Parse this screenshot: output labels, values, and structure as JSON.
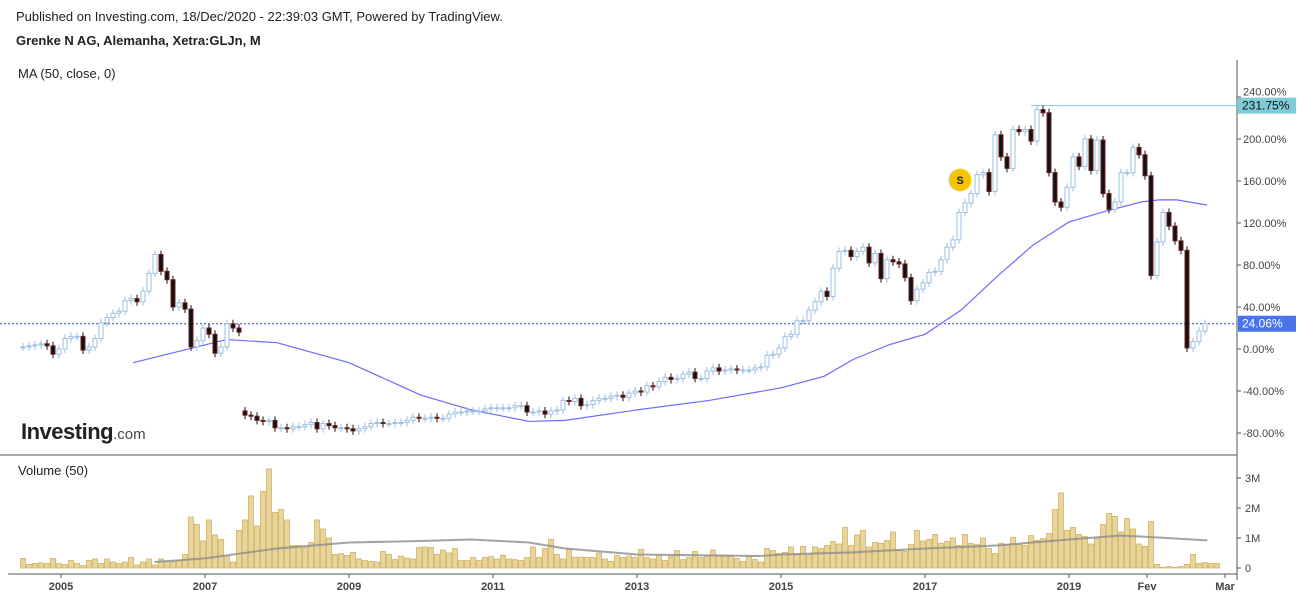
{
  "header": {
    "published": "Published on Investing.com, 18/Dec/2020 - 22:39:03 GMT, Powered by TradingView.",
    "symbol": "Grenke N AG, Alemanha, Xetra:GLJn, M"
  },
  "logo": {
    "main": "Investing",
    "suffix": ".com"
  },
  "marker": {
    "label": "S"
  },
  "colors": {
    "up": "#9bbfe0",
    "down_body": "#111111",
    "down_border": "#6b1d1d",
    "ma": "#6b6bff",
    "volume_fill": "#e8d59e",
    "volume_border": "#d2b45c",
    "vol_ma": "#8c8c8c",
    "last_price_bg": "#4a74e8",
    "high_bg": "#7fccd9"
  },
  "chart_data": [
    {
      "type": "candlestick",
      "title": "MA (50, close, 0)",
      "unit": "%",
      "start_month": "2004-05",
      "frequency": "monthly",
      "ylim": [
        -95,
        255
      ],
      "yticks": [
        "240.00%",
        "200.00%",
        "160.00%",
        "120.00%",
        "80.00%",
        "40.00%",
        "0.00%",
        "-40.00%",
        "-80.00%"
      ],
      "ytick_values": [
        240,
        200,
        160,
        120,
        80,
        40,
        0,
        -40,
        -80
      ],
      "close": [
        2,
        3,
        4,
        5,
        3,
        -5,
        0,
        10,
        12,
        12,
        -1,
        2,
        10,
        25,
        30,
        34,
        36,
        46,
        48,
        45,
        55,
        72,
        90,
        74,
        66,
        40,
        44,
        38,
        2,
        8,
        20,
        14,
        -4,
        2,
        24,
        20,
        16,
        -63,
        -64,
        -68,
        -69,
        -68,
        -75,
        -75,
        -76,
        -74,
        -74,
        -72,
        -70,
        -76,
        -71,
        -73,
        -75,
        -75,
        -76,
        -78,
        -76,
        -74,
        -71,
        -70,
        -71,
        -71,
        -70,
        -70,
        -68,
        -65,
        -66,
        -66,
        -65,
        -66,
        -66,
        -62,
        -60,
        -60,
        -59,
        -59,
        -59,
        -57,
        -56,
        -56,
        -56,
        -56,
        -54,
        -54,
        -60,
        -60,
        -59,
        -62,
        -59,
        -58,
        -49,
        -50,
        -47,
        -54,
        -53,
        -49,
        -47,
        -47,
        -45,
        -44,
        -46,
        -42,
        -40,
        -41,
        -35,
        -36,
        -31,
        -27,
        -29,
        -28,
        -24,
        -22,
        -28,
        -28,
        -21,
        -18,
        -21,
        -20,
        -19,
        -20,
        -20,
        -20,
        -18,
        -17,
        -6,
        -5,
        1,
        12,
        14,
        27,
        27,
        37,
        45,
        55,
        50,
        77,
        93,
        94,
        88,
        93,
        97,
        82,
        91,
        67,
        85,
        83,
        81,
        68,
        46,
        57,
        63,
        73,
        74,
        85,
        97,
        104,
        130,
        139,
        148,
        166,
        168,
        150,
        204,
        183,
        172,
        209,
        207,
        209,
        198,
        228,
        225,
        168,
        140,
        135,
        154,
        183,
        174,
        200,
        170,
        199,
        148,
        133,
        140,
        168,
        168,
        192,
        185,
        165,
        70,
        102,
        130,
        117,
        103,
        94,
        1,
        7,
        17,
        24.06
      ],
      "ma_series": {
        "name": "MA (50, close, 0)",
        "points": [
          [
            2006.0,
            -13
          ],
          [
            2007.3,
            9
          ],
          [
            2008.0,
            6
          ],
          [
            2009.0,
            -13
          ],
          [
            2010.0,
            -44
          ],
          [
            2010.7,
            -58
          ],
          [
            2011.5,
            -69
          ],
          [
            2012.0,
            -68
          ],
          [
            2013.0,
            -58
          ],
          [
            2014.0,
            -49
          ],
          [
            2015.0,
            -37
          ],
          [
            2015.6,
            -26
          ],
          [
            2016.0,
            -10
          ],
          [
            2016.5,
            4
          ],
          [
            2017.0,
            14
          ],
          [
            2017.5,
            37
          ],
          [
            2018.0,
            69
          ],
          [
            2018.5,
            99
          ],
          [
            2019.0,
            121
          ],
          [
            2019.5,
            131
          ],
          [
            2020.0,
            140
          ],
          [
            2020.25,
            142
          ],
          [
            2020.5,
            142
          ],
          [
            2020.92,
            137
          ]
        ]
      },
      "last_value_label": "24.06%",
      "last_value": 24.06,
      "high_label": "231.75%",
      "high_value": 231.75
    },
    {
      "type": "bar",
      "title": "Volume (50)",
      "unit": "M",
      "start_month": "2004-05",
      "ylim": [
        0,
        3.7
      ],
      "yticks": [
        "3M",
        "2M",
        "1M",
        "0"
      ],
      "ytick_values": [
        3,
        2,
        1,
        0
      ],
      "values": [
        0.32,
        0.12,
        0.15,
        0.17,
        0.15,
        0.32,
        0.15,
        0.12,
        0.25,
        0.15,
        0.08,
        0.25,
        0.3,
        0.15,
        0.3,
        0.2,
        0.15,
        0.2,
        0.35,
        0.1,
        0.2,
        0.3,
        0.1,
        0.3,
        0.2,
        0.2,
        0.25,
        0.45,
        1.7,
        1.45,
        0.9,
        1.6,
        1.1,
        0.95,
        0.4,
        0.2,
        1.25,
        1.6,
        2.4,
        1.4,
        2.55,
        3.3,
        1.85,
        1.95,
        1.6,
        0.75,
        0.75,
        0.68,
        0.85,
        1.6,
        1.3,
        1.0,
        0.45,
        0.48,
        0.42,
        0.52,
        0.3,
        0.25,
        0.22,
        0.2,
        0.55,
        0.45,
        0.28,
        0.4,
        0.33,
        0.3,
        0.68,
        0.7,
        0.68,
        0.45,
        0.6,
        0.5,
        0.65,
        0.25,
        0.25,
        0.35,
        0.25,
        0.35,
        0.38,
        0.3,
        0.42,
        0.3,
        0.28,
        0.25,
        0.35,
        0.7,
        0.36,
        0.65,
        0.95,
        0.45,
        0.3,
        0.65,
        0.36,
        0.36,
        0.35,
        0.35,
        0.5,
        0.3,
        0.22,
        0.42,
        0.35,
        0.4,
        0.35,
        0.62,
        0.35,
        0.3,
        0.42,
        0.25,
        0.38,
        0.58,
        0.28,
        0.35,
        0.55,
        0.35,
        0.38,
        0.6,
        0.42,
        0.42,
        0.42,
        0.32,
        0.22,
        0.38,
        0.28,
        0.2,
        0.65,
        0.58,
        0.48,
        0.52,
        0.7,
        0.45,
        0.72,
        0.45,
        0.7,
        0.65,
        0.75,
        0.88,
        0.8,
        1.35,
        0.75,
        1.1,
        1.25,
        0.7,
        0.85,
        0.82,
        0.92,
        1.2,
        0.58,
        0.55,
        0.78,
        1.25,
        0.9,
        0.95,
        1.12,
        0.82,
        0.88,
        1.0,
        0.75,
        1.12,
        0.82,
        0.78,
        1.0,
        0.65,
        0.48,
        0.82,
        0.78,
        1.02,
        0.78,
        0.75,
        1.08,
        0.92,
        0.98,
        1.15,
        1.95,
        2.5,
        1.25,
        1.35,
        1.12,
        1.05,
        0.8,
        1.0,
        1.45,
        1.82,
        1.72,
        1.2,
        1.65,
        1.3,
        0.8,
        0.72,
        1.55,
        0.12,
        0.02,
        0.05,
        0.02,
        0.05,
        0.12,
        0.45,
        0.15,
        0.18,
        0.15,
        0.15
      ],
      "ma_series": {
        "name": "Volume MA (50)",
        "points": [
          [
            2006.3,
            0.2
          ],
          [
            2007.0,
            0.32
          ],
          [
            2008.0,
            0.65
          ],
          [
            2009.0,
            0.85
          ],
          [
            2010.0,
            0.9
          ],
          [
            2010.7,
            0.95
          ],
          [
            2011.5,
            0.85
          ],
          [
            2012.0,
            0.65
          ],
          [
            2013.0,
            0.45
          ],
          [
            2014.0,
            0.42
          ],
          [
            2014.7,
            0.4
          ],
          [
            2015.0,
            0.45
          ],
          [
            2016.0,
            0.52
          ],
          [
            2017.0,
            0.65
          ],
          [
            2018.0,
            0.75
          ],
          [
            2019.0,
            0.95
          ],
          [
            2019.7,
            1.08
          ],
          [
            2020.0,
            1.05
          ],
          [
            2020.92,
            0.92
          ]
        ]
      }
    }
  ],
  "xaxis": {
    "labels": [
      "2005",
      "2007",
      "2009",
      "2011",
      "2013",
      "2015",
      "2017",
      "2019",
      "Fev",
      "Mar"
    ],
    "label_dates": [
      2005.0,
      2007.0,
      2009.0,
      2011.0,
      2013.0,
      2015.0,
      2017.0,
      2019.0,
      2020.083,
      2021.167
    ]
  }
}
